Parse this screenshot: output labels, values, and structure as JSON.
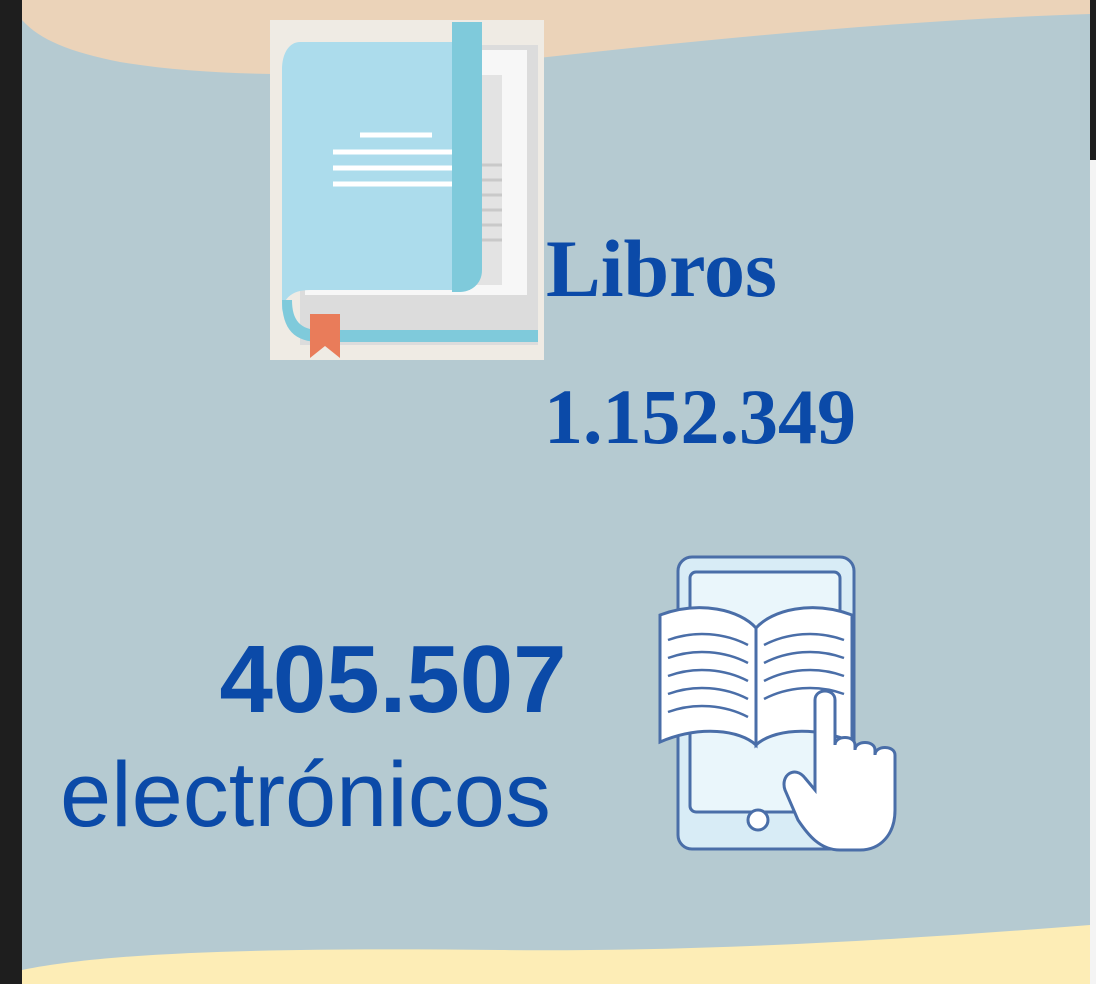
{
  "books": {
    "label": "Libros",
    "count": "1.152.349"
  },
  "ebooks": {
    "count": "405.507",
    "label": "electrónicos"
  }
}
